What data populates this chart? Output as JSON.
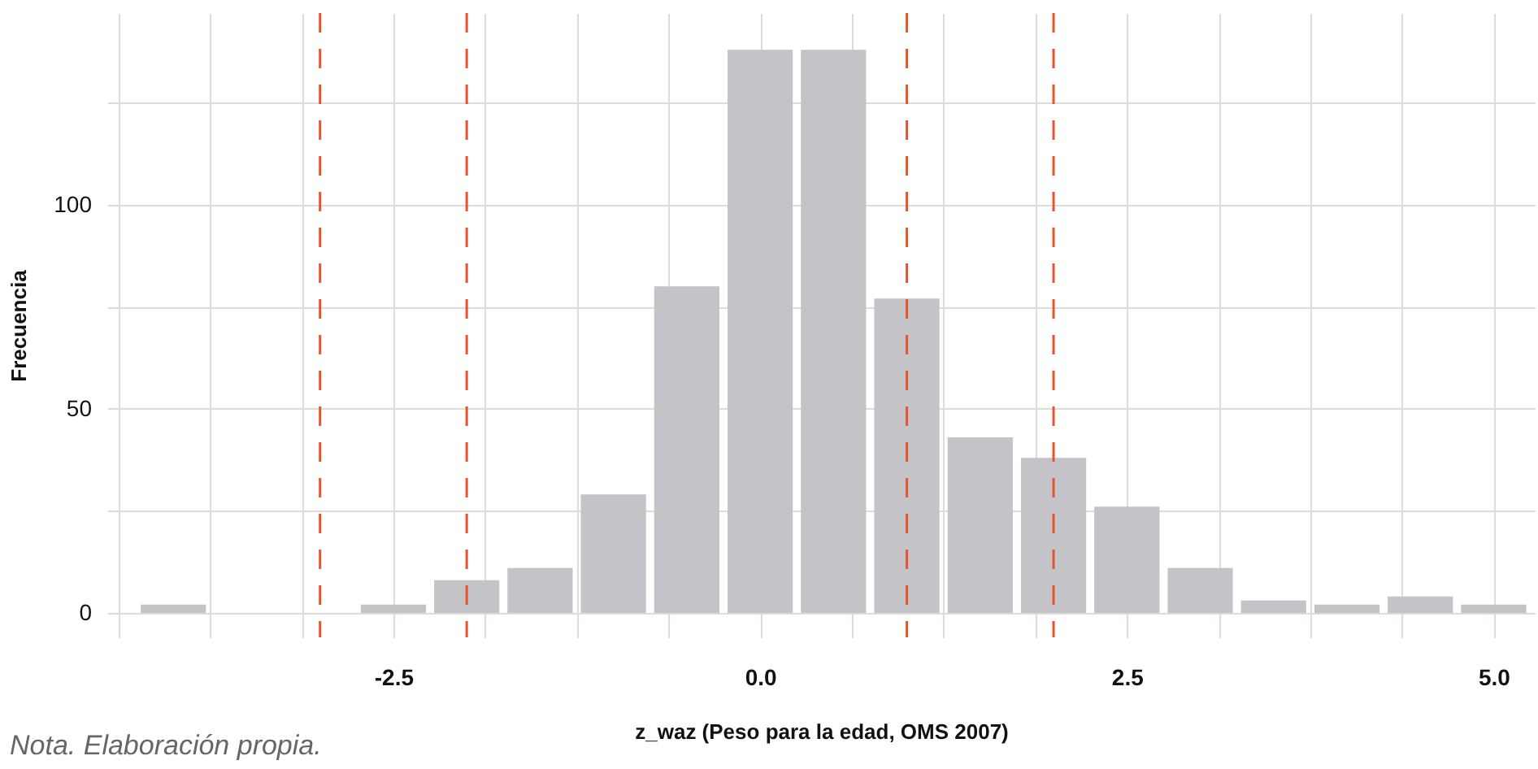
{
  "chart_data": {
    "type": "histogram",
    "xlabel": "z_waz (Peso para la edad, OMS 2007)",
    "ylabel": "Frecuencia",
    "bins": [
      -4.25,
      -3.75,
      -3.25,
      -2.75,
      -2.25,
      -1.75,
      -1.25,
      -0.75,
      -0.25,
      0.25,
      0.75,
      1.25,
      1.75,
      2.25,
      2.75,
      3.25,
      3.75,
      4.25,
      4.75,
      5.25
    ],
    "values": [
      2,
      0,
      0,
      2,
      8,
      11,
      29,
      80,
      138,
      138,
      77,
      43,
      38,
      26,
      11,
      3,
      2,
      4,
      2
    ],
    "color": "#c4c3c8",
    "xlim": [
      -4.45,
      5.28
    ],
    "ylim": [
      -6,
      147
    ],
    "xticks": [
      {
        "value": -4.375,
        "label": null
      },
      {
        "value": -3.75,
        "label": null
      },
      {
        "value": -3.125,
        "label": null
      },
      -2.5,
      {
        "value": -1.875,
        "label": null
      },
      {
        "value": -1.25,
        "label": null
      },
      {
        "value": -0.625,
        "label": null
      },
      {
        "value": 0,
        "label": "0.0"
      },
      {
        "value": 0.625,
        "label": null
      },
      {
        "value": 1.25,
        "label": null
      },
      {
        "value": 1.875,
        "label": null
      },
      2.5,
      {
        "value": 3.125,
        "label": null
      },
      {
        "value": 3.75,
        "label": null
      },
      {
        "value": 4.375,
        "label": null
      },
      {
        "value": 5,
        "label": "5.0"
      }
    ],
    "yticks": [
      0,
      {
        "value": 25,
        "label": null
      },
      50,
      {
        "value": 75,
        "label": null
      },
      100,
      {
        "value": 125,
        "label": null
      }
    ],
    "grid": true,
    "ref_lines": [
      {
        "axis": "x",
        "value": -3,
        "color": "#e8552d",
        "line_style": "dashed"
      },
      {
        "axis": "x",
        "value": -2,
        "color": "#e8552d",
        "line_style": "dashed"
      },
      {
        "axis": "x",
        "value": 1,
        "color": "#e8552d",
        "line_style": "dashed"
      },
      {
        "axis": "x",
        "value": 2,
        "color": "#e8552d",
        "line_style": "dashed"
      }
    ],
    "annotations": [
      "Nota. Elaboración propia."
    ]
  }
}
